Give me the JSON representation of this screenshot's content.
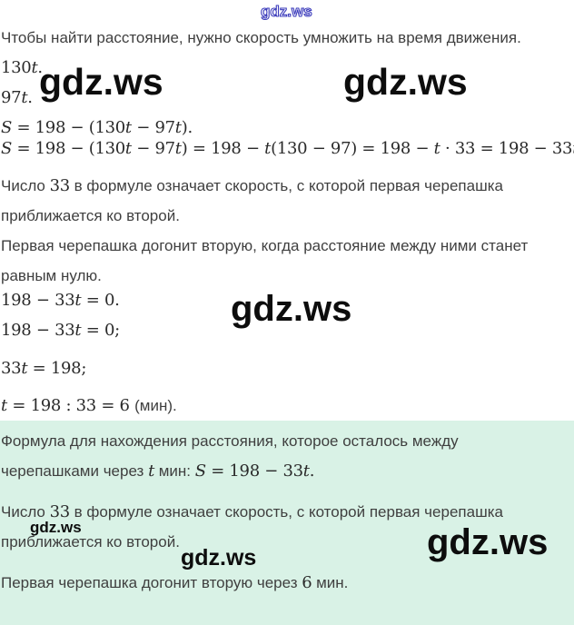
{
  "page": {
    "background": "#ffffff",
    "answer_highlight_color": "#d9f2e6",
    "text_color": "#3f3f3f",
    "math_color": "#2a2a2a",
    "watermark_color": "#0d0d0d",
    "watermark_outline_color": "#3b3bbb"
  },
  "watermarks": {
    "top": {
      "text": "gdz.ws"
    },
    "upper_left": {
      "text": "gdz.ws"
    },
    "upper_right": {
      "text": "gdz.ws"
    },
    "middle": {
      "text": "gdz.ws"
    },
    "lower_left": {
      "text": "gdz.ws"
    },
    "lower_center": {
      "text": "gdz.ws"
    },
    "lower_right": {
      "text": "gdz.ws"
    }
  },
  "solution": {
    "lines": [
      {
        "segments": [
          {
            "k": "text",
            "t": "Чтобы найти расстояние, нужно скорость умножить на время движения."
          }
        ]
      },
      {
        "segments": [
          {
            "k": "mn",
            "t": "130"
          },
          {
            "k": "mi",
            "t": "t"
          },
          {
            "k": "mn",
            "t": "."
          }
        ]
      },
      {
        "segments": [
          {
            "k": "mn",
            "t": "97"
          },
          {
            "k": "mi",
            "t": "t"
          },
          {
            "k": "mn",
            "t": "."
          }
        ]
      },
      {
        "segments": [
          {
            "k": "mi",
            "t": "S"
          },
          {
            "k": "mn",
            "t": " = 198 − (130"
          },
          {
            "k": "mi",
            "t": "t"
          },
          {
            "k": "mn",
            "t": " − 97"
          },
          {
            "k": "mi",
            "t": "t"
          },
          {
            "k": "mn",
            "t": ")."
          }
        ]
      },
      {
        "segments": [
          {
            "k": "mi",
            "t": "S"
          },
          {
            "k": "mn",
            "t": " = 198 − (130"
          },
          {
            "k": "mi",
            "t": "t"
          },
          {
            "k": "mn",
            "t": " − 97"
          },
          {
            "k": "mi",
            "t": "t"
          },
          {
            "k": "mn",
            "t": ") = 198 − "
          },
          {
            "k": "mi",
            "t": "t"
          },
          {
            "k": "mn",
            "t": "(130 − 97) = 198 − "
          },
          {
            "k": "mi",
            "t": "t"
          },
          {
            "k": "mn",
            "t": " · 33 = 198 − 33"
          },
          {
            "k": "mi",
            "t": "t"
          },
          {
            "k": "mn",
            "t": "."
          }
        ]
      },
      {
        "segments": [
          {
            "k": "text",
            "t": "Число "
          },
          {
            "k": "mn",
            "t": "33"
          },
          {
            "k": "text",
            "t": " в формуле означает скорость, с которой первая черепашка"
          }
        ]
      },
      {
        "segments": [
          {
            "k": "text",
            "t": "приближается ко второй."
          }
        ]
      },
      {
        "segments": [
          {
            "k": "text",
            "t": "Первая черепашка догонит вторую, когда расстояние между ними станет"
          }
        ]
      },
      {
        "segments": [
          {
            "k": "text",
            "t": "равным нулю."
          }
        ]
      },
      {
        "segments": [
          {
            "k": "mn",
            "t": "198 − 33"
          },
          {
            "k": "mi",
            "t": "t"
          },
          {
            "k": "mn",
            "t": " = 0."
          }
        ]
      },
      {
        "segments": [
          {
            "k": "mn",
            "t": "198 − 33"
          },
          {
            "k": "mi",
            "t": "t"
          },
          {
            "k": "mn",
            "t": " = 0;"
          }
        ]
      },
      {
        "segments": [
          {
            "k": "mn",
            "t": "33"
          },
          {
            "k": "mi",
            "t": "t"
          },
          {
            "k": "mn",
            "t": " = 198;"
          }
        ]
      },
      {
        "segments": [
          {
            "k": "mi",
            "t": "t"
          },
          {
            "k": "mn",
            "t": " = 198 : 33 = 6 "
          },
          {
            "k": "text",
            "t": "(мин)."
          }
        ]
      }
    ]
  },
  "answer_box": {
    "paragraphs": [
      {
        "lines": [
          [
            {
              "k": "text",
              "t": "Формула для нахождения расстояния, которое осталось между"
            }
          ],
          [
            {
              "k": "text",
              "t": "черепашками через "
            },
            {
              "k": "mi",
              "t": "t"
            },
            {
              "k": "text",
              "t": " мин: "
            },
            {
              "k": "mi",
              "t": "S"
            },
            {
              "k": "mn",
              "t": " = 198 − 33"
            },
            {
              "k": "mi",
              "t": "t"
            },
            {
              "k": "mn",
              "t": "."
            }
          ]
        ]
      },
      {
        "lines": [
          [
            {
              "k": "text",
              "t": "Число "
            },
            {
              "k": "mn",
              "t": "33"
            },
            {
              "k": "text",
              "t": " в формуле означает скорость, с которой первая черепашка"
            }
          ],
          [
            {
              "k": "text",
              "t": "приближается ко второй."
            }
          ]
        ]
      },
      {
        "lines": [
          [
            {
              "k": "text",
              "t": "Первая черепашка догонит вторую через "
            },
            {
              "k": "mn",
              "t": "6"
            },
            {
              "k": "text",
              "t": " мин."
            }
          ]
        ]
      }
    ]
  }
}
